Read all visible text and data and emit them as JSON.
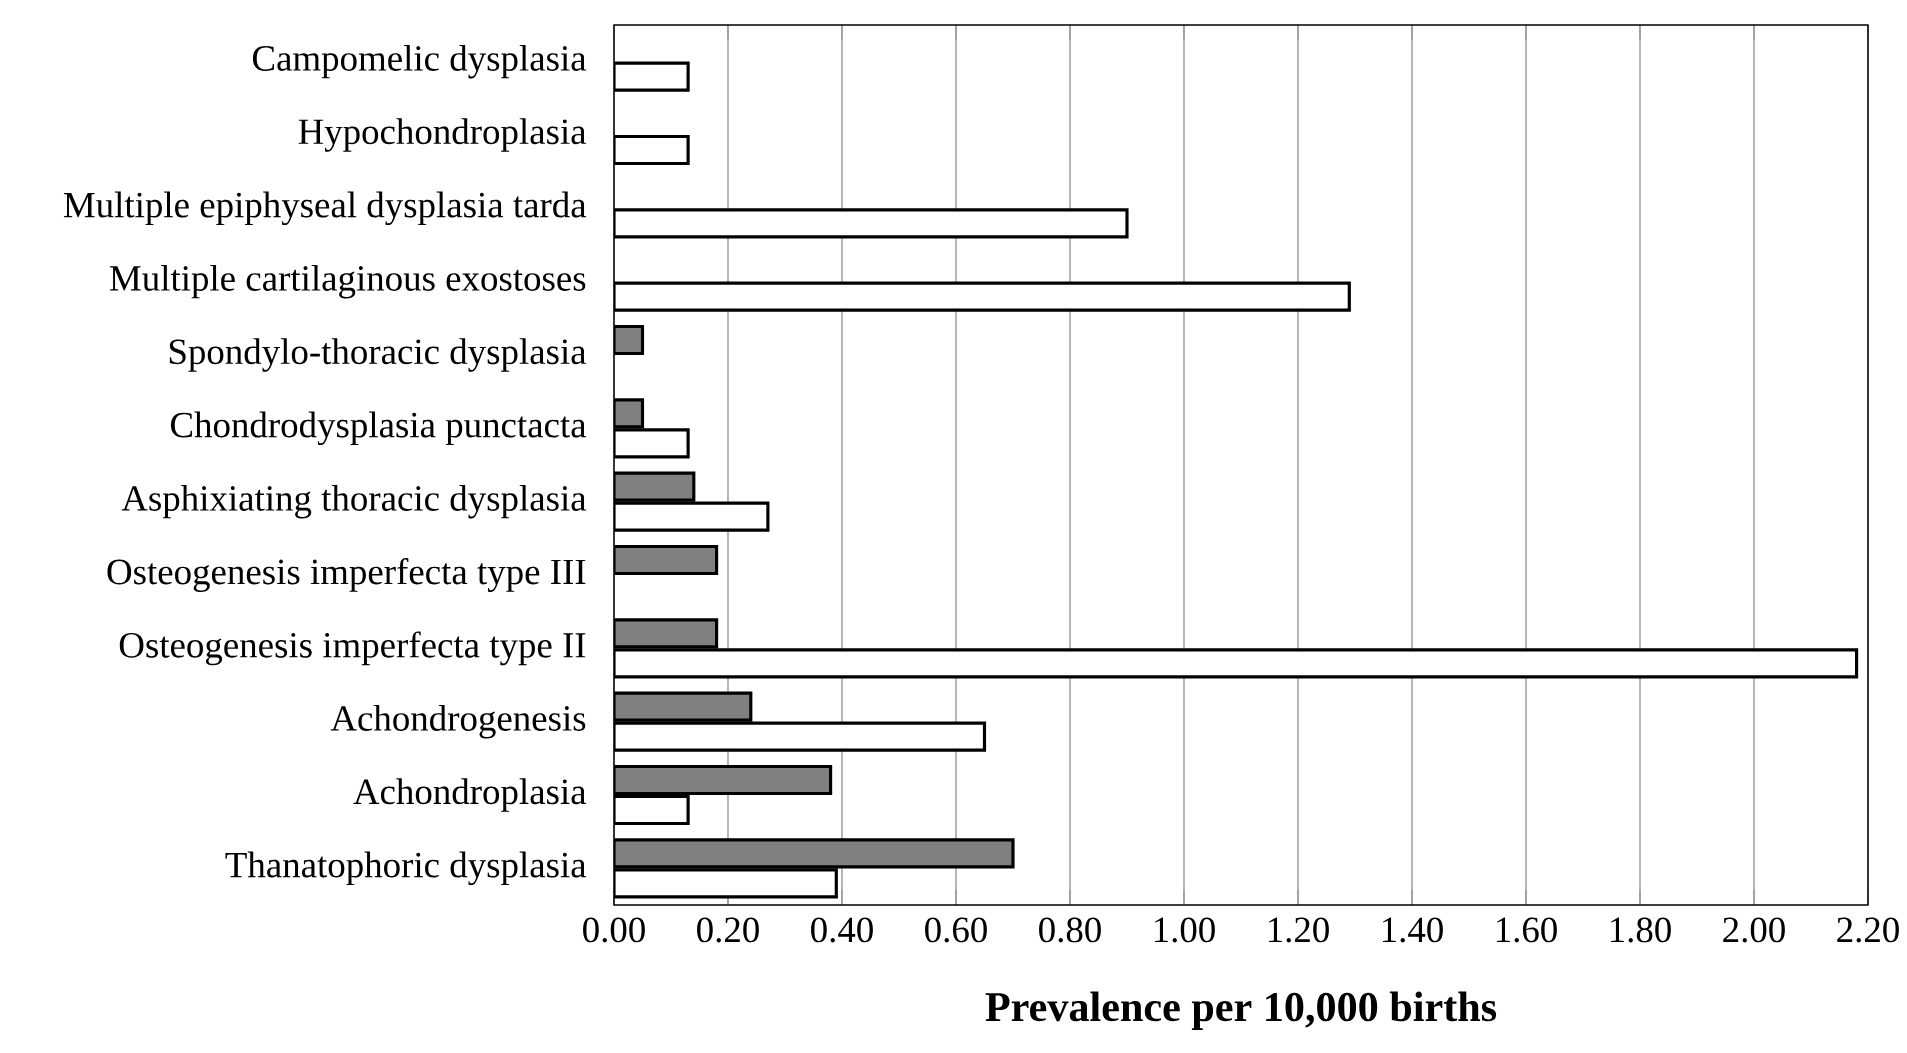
{
  "chart_data": {
    "type": "bar",
    "orientation": "horizontal",
    "xlabel": "Prevalence per 10,000 births",
    "categories": [
      "Campomelic dysplasia",
      "Hypochondroplasia",
      "Multiple epiphyseal dysplasia tarda",
      "Multiple cartilaginous exostoses",
      "Spondylo-thoracic dysplasia",
      "Chondrodysplasia punctacta",
      "Asphixiating thoracic dysplasia",
      "Osteogenesis imperfecta type III",
      "Osteogenesis imperfecta type II",
      "Achondrogenesis",
      "Achondroplasia",
      "Thanatophoric dysplasia"
    ],
    "series": [
      {
        "color": "#ffffff",
        "values": [
          0.13,
          0.13,
          0.9,
          1.29,
          null,
          0.13,
          0.27,
          null,
          2.18,
          0.65,
          0.13,
          0.39
        ]
      },
      {
        "color": "#808080",
        "values": [
          null,
          null,
          null,
          null,
          0.05,
          0.05,
          0.14,
          0.18,
          0.18,
          0.24,
          0.38,
          0.7
        ]
      }
    ],
    "xlim": [
      0,
      2.2
    ],
    "xticks": [
      {
        "value": 0,
        "label": "0.00"
      },
      {
        "value": 0.2,
        "label": "0.20"
      },
      {
        "value": 0.4,
        "label": "0.40"
      },
      {
        "value": 0.6,
        "label": "0.60"
      },
      {
        "value": 0.8,
        "label": "0.80"
      },
      {
        "value": 1.0,
        "label": "1.00"
      },
      {
        "value": 1.2,
        "label": "1.20"
      },
      {
        "value": 1.4,
        "label": "1.40"
      },
      {
        "value": 1.6,
        "label": "1.60"
      },
      {
        "value": 1.8,
        "label": "1.80"
      },
      {
        "value": 2.0,
        "label": "2.00"
      },
      {
        "value": 2.2,
        "label": "2.20"
      }
    ],
    "grid": "x"
  }
}
